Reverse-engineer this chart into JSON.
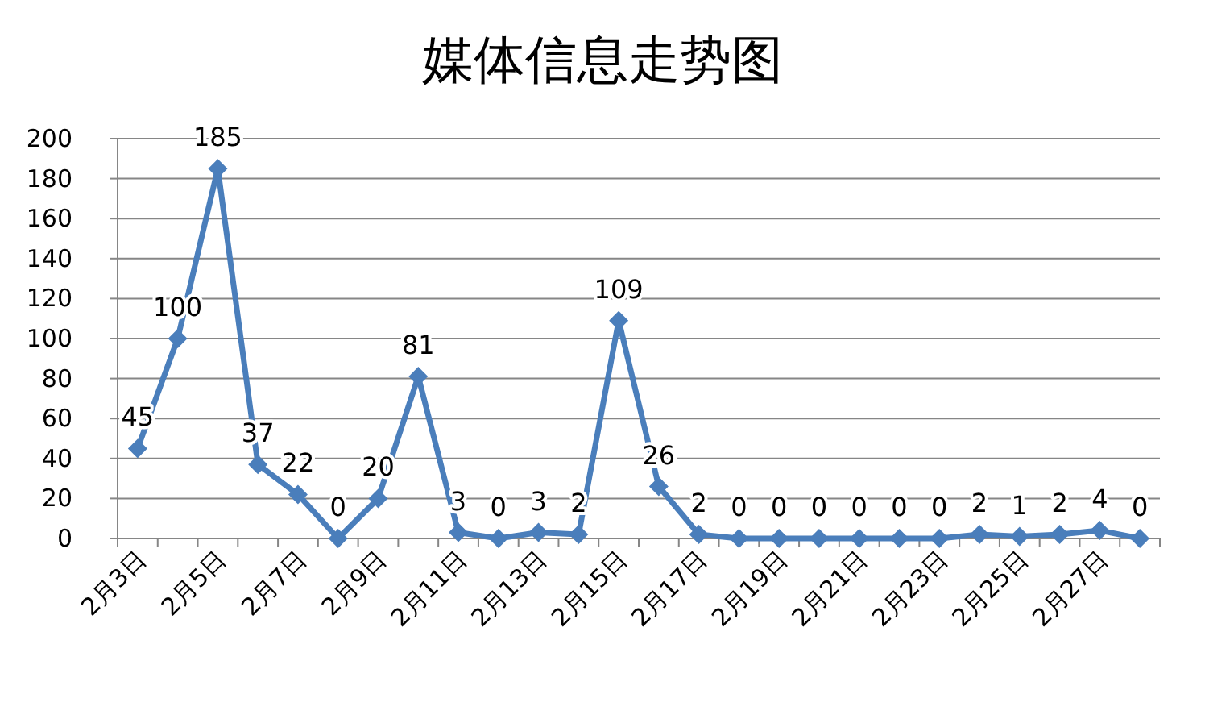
{
  "chart_data": {
    "type": "line",
    "title": "媒体信息走势图",
    "categories": [
      "2月3日",
      null,
      "2月5日",
      null,
      "2月7日",
      null,
      "2月9日",
      null,
      "2月11日",
      null,
      "2月13日",
      null,
      "2月15日",
      null,
      "2月17日",
      null,
      "2月19日",
      null,
      "2月21日",
      null,
      "2月23日",
      null,
      "2月25日",
      null,
      "2月27日",
      null
    ],
    "series": [
      {
        "color": "#4a7ebb",
        "values": [
          45,
          100,
          185,
          37,
          22,
          0,
          20,
          81,
          3,
          0,
          3,
          2,
          109,
          26,
          2,
          0,
          0,
          0,
          0,
          0,
          0,
          2,
          1,
          2,
          4,
          0
        ]
      }
    ],
    "ylim": [
      0,
      200
    ],
    "yticks": [
      0,
      20,
      40,
      60,
      80,
      100,
      120,
      140,
      160,
      180,
      200
    ],
    "grid": "y",
    "marker": "diamond",
    "line_style": "solid",
    "data_labels": true
  }
}
